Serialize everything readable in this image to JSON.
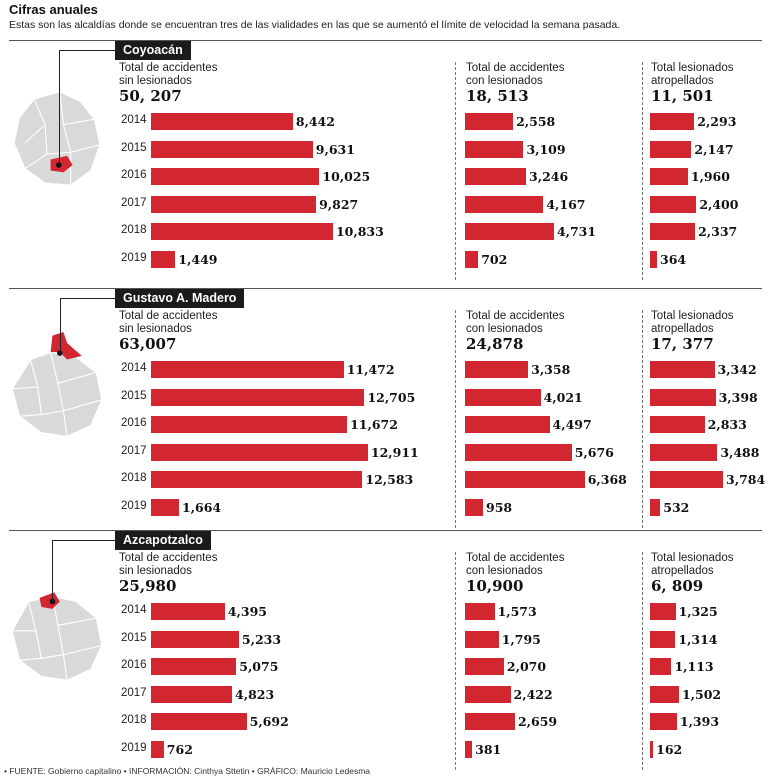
{
  "header": {
    "title": "Cifras anuales",
    "subtitle": "Estas son las alcaldías donde se encuentran tres de las vialidades en las que se aumentó el límite de velocidad la semana pasada."
  },
  "colors": {
    "bar": "#d22631",
    "map": "#d9d9d9",
    "map_highlight": "#d22631",
    "label_bg": "#1b1b1b"
  },
  "chart_data": [
    {
      "type": "bar",
      "alcaldia": "Coyoacán",
      "categories": [
        "2014",
        "2015",
        "2016",
        "2017",
        "2018",
        "2019"
      ],
      "series": [
        {
          "name": "Total de accidentes sin lesionados",
          "total_label": "50, 207",
          "values": [
            8442,
            9631,
            10025,
            9827,
            10833,
            1449
          ],
          "labels": [
            "8,442",
            "9,631",
            "10,025",
            "9,827",
            "10,833",
            "1,449"
          ]
        },
        {
          "name": "Total de accidentes con lesionados",
          "total_label": "18, 513",
          "values": [
            2558,
            3109,
            3246,
            4167,
            4731,
            702
          ],
          "labels": [
            "2,558",
            "3,109",
            "3,246",
            "4,167",
            "4,731",
            "702"
          ]
        },
        {
          "name": "Total lesionados atropellados",
          "total_label": "11, 501",
          "values": [
            2293,
            2147,
            1960,
            2400,
            2337,
            364
          ],
          "labels": [
            "2,293",
            "2,147",
            "1,960",
            "2,400",
            "2,337",
            "364"
          ]
        }
      ]
    },
    {
      "type": "bar",
      "alcaldia": "Gustavo A. Madero",
      "categories": [
        "2014",
        "2015",
        "2016",
        "2017",
        "2018",
        "2019"
      ],
      "series": [
        {
          "name": "Total de accidentes sin lesionados",
          "total_label": "63,007",
          "values": [
            11472,
            12705,
            11672,
            12911,
            12583,
            1664
          ],
          "labels": [
            "11,472",
            "12,705",
            "11,672",
            "12,911",
            "12,583",
            "1,664"
          ]
        },
        {
          "name": "Total de accidentes con lesionados",
          "total_label": "24,878",
          "values": [
            3358,
            4021,
            4497,
            5676,
            6368,
            958
          ],
          "labels": [
            "3,358",
            "4,021",
            "4,497",
            "5,676",
            "6,368",
            "958"
          ]
        },
        {
          "name": "Total lesionados atropellados",
          "total_label": "17, 377",
          "values": [
            3342,
            3398,
            2833,
            3488,
            3784,
            532
          ],
          "labels": [
            "3,342",
            "3,398",
            "2,833",
            "3,488",
            "3,784",
            "532"
          ]
        }
      ]
    },
    {
      "type": "bar",
      "alcaldia": "Azcapotzalco",
      "categories": [
        "2014",
        "2015",
        "2016",
        "2017",
        "2018",
        "2019"
      ],
      "series": [
        {
          "name": "Total de accidentes sin lesionados",
          "total_label": "25,980",
          "values": [
            4395,
            5233,
            5075,
            4823,
            5692,
            762
          ],
          "labels": [
            "4,395",
            "5,233",
            "5,075",
            "4,823",
            "5,692",
            "762"
          ]
        },
        {
          "name": "Total de accidentes con lesionados",
          "total_label": "10,900",
          "values": [
            1573,
            1795,
            2070,
            2422,
            2659,
            381
          ],
          "labels": [
            "1,573",
            "1,795",
            "2,070",
            "2,422",
            "2,659",
            "381"
          ]
        },
        {
          "name": "Total lesionados atropellados",
          "total_label": "6, 809",
          "values": [
            1325,
            1314,
            1113,
            1502,
            1393,
            162
          ],
          "labels": [
            "1,325",
            "1,314",
            "1,113",
            "1,502",
            "1,393",
            "162"
          ]
        }
      ]
    }
  ],
  "footer": "• FUENTE: Gobierno capitalino • INFORMACIÓN: Cinthya Sttetin • GRÁFICO: Mauricio Ledesma"
}
